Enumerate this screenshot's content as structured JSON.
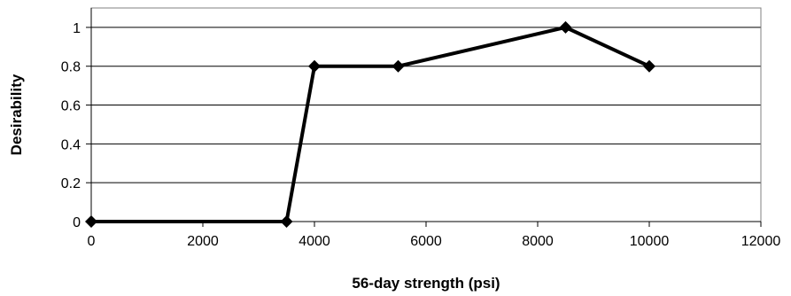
{
  "chart_data": {
    "type": "line",
    "xlabel": "56-day strength (psi)",
    "ylabel": "Desirability",
    "xlim": [
      0,
      12000
    ],
    "ylim": [
      0,
      1.1
    ],
    "x_ticks": [
      0,
      2000,
      4000,
      6000,
      8000,
      10000,
      12000
    ],
    "y_ticks": [
      0,
      0.2,
      0.4,
      0.6,
      0.8,
      1
    ],
    "x_tick_labels": [
      "0",
      "2000",
      "4000",
      "6000",
      "8000",
      "10000",
      "12000"
    ],
    "y_tick_labels": [
      "0",
      "0.2",
      "0.4",
      "0.6",
      "0.8",
      "1"
    ],
    "grid": "horizontal",
    "legend": "none",
    "marker": "diamond",
    "line_color": "#000000",
    "series": [
      {
        "x": [
          0,
          3500,
          4000,
          5500,
          8500,
          10000
        ],
        "y": [
          0,
          0,
          0.8,
          0.8,
          1,
          0.8
        ]
      }
    ]
  }
}
